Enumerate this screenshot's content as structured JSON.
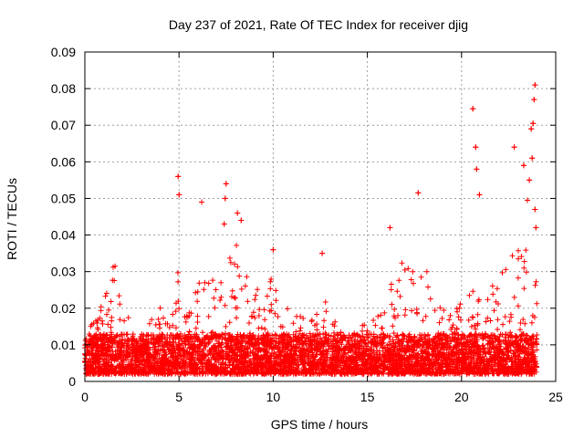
{
  "chart_data": {
    "type": "scatter",
    "title": "Day 237 of 2021, Rate Of TEC Index for receiver djig",
    "xlabel": "GPS time / hours",
    "ylabel": "ROTI / TECUs",
    "xlim": [
      0,
      25
    ],
    "ylim": [
      0,
      0.09
    ],
    "x_ticks": [
      "0",
      "5",
      "10",
      "15",
      "20",
      "25"
    ],
    "y_ticks": [
      "0",
      "0.01",
      "0.02",
      "0.03",
      "0.04",
      "0.05",
      "0.06",
      "0.07",
      "0.08",
      "0.09"
    ],
    "grid": true,
    "marker": "+",
    "series_color": "#ff0000",
    "data_gap": [
      15.95,
      16.05
    ],
    "highlight_points": [
      {
        "x": 4.95,
        "y": 0.056
      },
      {
        "x": 5.0,
        "y": 0.051
      },
      {
        "x": 6.2,
        "y": 0.049
      },
      {
        "x": 7.5,
        "y": 0.054
      },
      {
        "x": 7.45,
        "y": 0.05
      },
      {
        "x": 7.4,
        "y": 0.043
      },
      {
        "x": 8.1,
        "y": 0.046
      },
      {
        "x": 8.3,
        "y": 0.044
      },
      {
        "x": 10.0,
        "y": 0.036
      },
      {
        "x": 12.6,
        "y": 0.035
      },
      {
        "x": 16.2,
        "y": 0.042
      },
      {
        "x": 17.7,
        "y": 0.0515
      },
      {
        "x": 20.6,
        "y": 0.0745
      },
      {
        "x": 20.75,
        "y": 0.064
      },
      {
        "x": 20.8,
        "y": 0.058
      },
      {
        "x": 20.95,
        "y": 0.051
      },
      {
        "x": 22.8,
        "y": 0.064
      },
      {
        "x": 23.3,
        "y": 0.059
      },
      {
        "x": 23.7,
        "y": 0.069
      },
      {
        "x": 23.9,
        "y": 0.081
      },
      {
        "x": 23.85,
        "y": 0.077
      },
      {
        "x": 23.8,
        "y": 0.0705
      },
      {
        "x": 23.75,
        "y": 0.061
      },
      {
        "x": 23.6,
        "y": 0.055
      },
      {
        "x": 23.5,
        "y": 0.0495
      },
      {
        "x": 23.9,
        "y": 0.047
      },
      {
        "x": 23.95,
        "y": 0.042
      }
    ],
    "envelope": [
      [
        0.0,
        0.016
      ],
      [
        0.5,
        0.017
      ],
      [
        0.9,
        0.022
      ],
      [
        1.2,
        0.029
      ],
      [
        1.6,
        0.032
      ],
      [
        2.0,
        0.02
      ],
      [
        2.4,
        0.017
      ],
      [
        2.8,
        0.011
      ],
      [
        3.2,
        0.016
      ],
      [
        3.6,
        0.018
      ],
      [
        4.0,
        0.022
      ],
      [
        4.5,
        0.02
      ],
      [
        4.9,
        0.033
      ],
      [
        5.1,
        0.025
      ],
      [
        5.5,
        0.018
      ],
      [
        6.0,
        0.027
      ],
      [
        6.5,
        0.029
      ],
      [
        7.0,
        0.03
      ],
      [
        7.5,
        0.035
      ],
      [
        8.0,
        0.038
      ],
      [
        8.4,
        0.036
      ],
      [
        9.0,
        0.028
      ],
      [
        9.5,
        0.025
      ],
      [
        10.0,
        0.03
      ],
      [
        10.5,
        0.022
      ],
      [
        11.0,
        0.022
      ],
      [
        11.5,
        0.02
      ],
      [
        12.0,
        0.018
      ],
      [
        12.5,
        0.028
      ],
      [
        13.0,
        0.019
      ],
      [
        13.5,
        0.016
      ],
      [
        14.0,
        0.015
      ],
      [
        14.5,
        0.016
      ],
      [
        15.0,
        0.016
      ],
      [
        15.5,
        0.018
      ],
      [
        15.9,
        0.02
      ],
      [
        16.1,
        0.025
      ],
      [
        16.5,
        0.032
      ],
      [
        17.0,
        0.034
      ],
      [
        17.5,
        0.035
      ],
      [
        18.0,
        0.036
      ],
      [
        18.5,
        0.022
      ],
      [
        19.0,
        0.02
      ],
      [
        19.5,
        0.018
      ],
      [
        20.0,
        0.022
      ],
      [
        20.5,
        0.028
      ],
      [
        21.0,
        0.034
      ],
      [
        21.5,
        0.026
      ],
      [
        22.0,
        0.03
      ],
      [
        22.5,
        0.034
      ],
      [
        23.0,
        0.036
      ],
      [
        23.5,
        0.038
      ],
      [
        24.0,
        0.03
      ]
    ],
    "floor": 0.002,
    "n_points": 6200
  }
}
